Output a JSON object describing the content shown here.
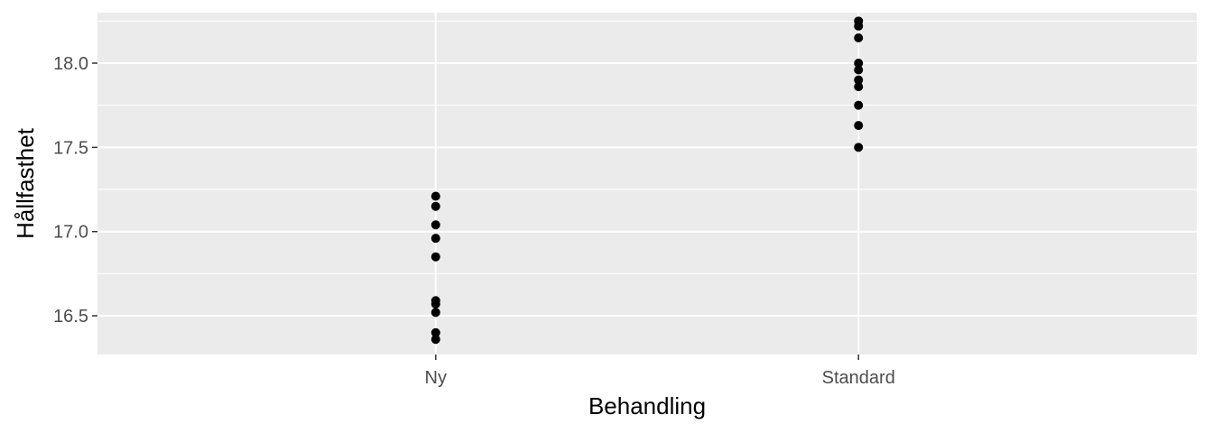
{
  "chart_data": {
    "type": "scatter",
    "title": "",
    "xlabel": "Behandling",
    "ylabel": "Hållfasthet",
    "categories": [
      "Ny",
      "Standard"
    ],
    "ylim": [
      16.27,
      18.3
    ],
    "yticks": [
      16.5,
      17.0,
      17.5,
      18.0
    ],
    "ytick_labels": [
      "16.5",
      "17.0",
      "17.5",
      "18.0"
    ],
    "grid": true,
    "legend": "none",
    "point_color": "#000000",
    "panel_color": "#ebebeb",
    "series": [
      {
        "category": "Ny",
        "values": [
          17.21,
          17.15,
          17.04,
          16.96,
          16.85,
          16.59,
          16.57,
          16.52,
          16.4,
          16.36
        ]
      },
      {
        "category": "Standard",
        "values": [
          18.25,
          18.22,
          18.15,
          18.0,
          17.96,
          17.9,
          17.86,
          17.75,
          17.63,
          17.5
        ]
      }
    ]
  }
}
